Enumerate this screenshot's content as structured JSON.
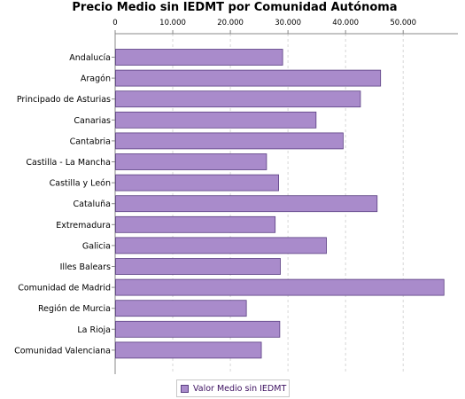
{
  "chart_data": {
    "type": "bar",
    "orientation": "horizontal",
    "title": "Precio Medio sin IEDMT por Comunidad Autónoma",
    "categories": [
      "Andalucía",
      "Aragón",
      "Principado de Asturias",
      "Canarias",
      "Cantabria",
      "Castilla - La Mancha",
      "Castilla y León",
      "Cataluña",
      "Extremadura",
      "Galicia",
      "Illes Balears",
      "Comunidad de Madrid",
      "Región de Murcia",
      "La Rioja",
      "Comunidad Valenciana"
    ],
    "series": [
      {
        "name": "Valor Medio sin IEDMT",
        "values": [
          29000,
          46000,
          42500,
          34800,
          39500,
          26200,
          28300,
          45400,
          27700,
          36600,
          28600,
          57000,
          22700,
          28500,
          25300
        ]
      }
    ],
    "xlim": [
      0,
      59500
    ],
    "x_ticks": [
      0,
      10000,
      20000,
      30000,
      40000,
      50000
    ],
    "x_tick_labels": [
      "0",
      "10.000",
      "20.000",
      "30.000",
      "40.000",
      "50.000"
    ],
    "x_axis_position": "top",
    "grid": "vertical dashed",
    "legend": "bottom-center",
    "colors": {
      "bar_fill": "#a98bcb",
      "bar_stroke": "#5a3f82",
      "grid": "#d6d6d6",
      "axis": "#888888"
    }
  }
}
